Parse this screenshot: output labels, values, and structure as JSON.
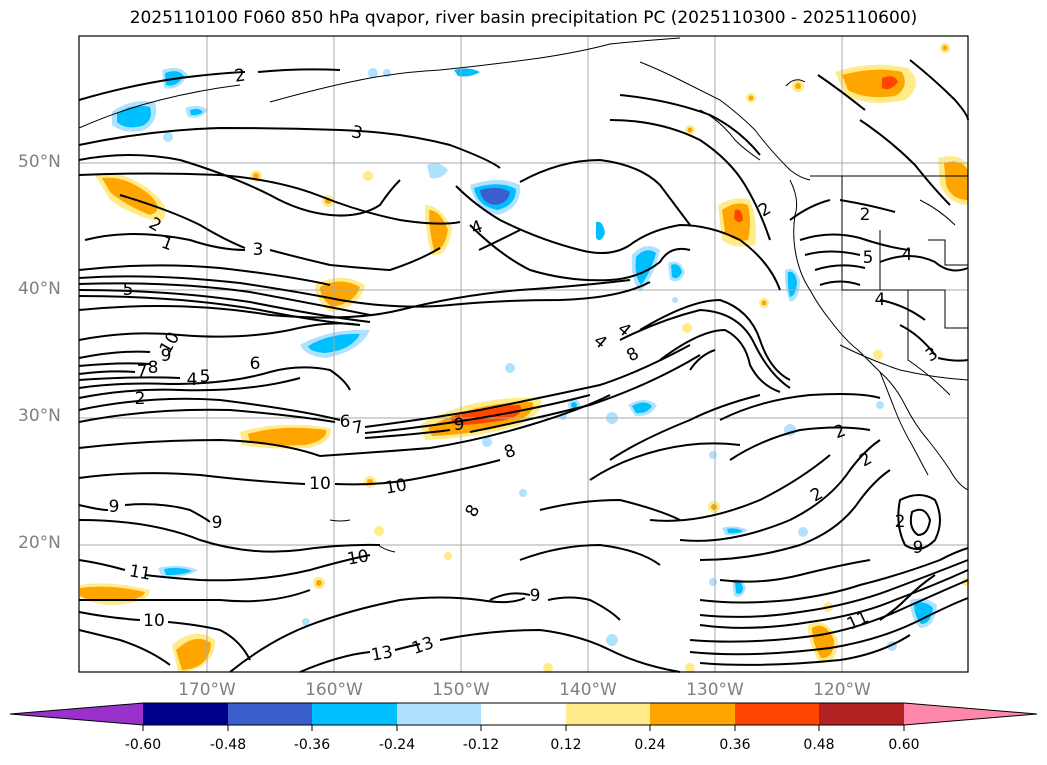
{
  "title": "2025110100 F060 850 hPa qvapor, river basin precipitation PC (2025110300 - 2025110600)",
  "lat_labels": [
    "50°N",
    "40°N",
    "30°N",
    "20°N"
  ],
  "lon_labels": [
    "170°W",
    "160°W",
    "150°W",
    "140°W",
    "130°W",
    "120°W"
  ],
  "colorbar": {
    "colors": [
      "#9932cc",
      "#00008b",
      "#3a5fcd",
      "#00bfff",
      "#b0e2ff",
      "#ffffff",
      "#ffeb8a",
      "#ffa500",
      "#ff4500",
      "#b22222",
      "#ff88aa"
    ],
    "tick_labels": [
      "-0.60",
      "-0.48",
      "-0.36",
      "-0.24",
      "-0.12",
      "0.12",
      "0.24",
      "0.36",
      "0.48",
      "0.60"
    ]
  },
  "contour_labels": [
    {
      "text": "2"
    },
    {
      "text": "3"
    },
    {
      "text": "2"
    },
    {
      "text": "1"
    },
    {
      "text": "3"
    },
    {
      "text": "4"
    },
    {
      "text": "5"
    },
    {
      "text": "10"
    },
    {
      "text": "9"
    },
    {
      "text": "8"
    },
    {
      "text": "7"
    },
    {
      "text": "6"
    },
    {
      "text": "5"
    },
    {
      "text": "4"
    },
    {
      "text": "2"
    },
    {
      "text": "6"
    },
    {
      "text": "7"
    },
    {
      "text": "9"
    },
    {
      "text": "8"
    },
    {
      "text": "4"
    },
    {
      "text": "4"
    },
    {
      "text": "8"
    },
    {
      "text": "2"
    },
    {
      "text": "2"
    },
    {
      "text": "5"
    },
    {
      "text": "4"
    },
    {
      "text": "4"
    },
    {
      "text": "3"
    },
    {
      "text": "2"
    },
    {
      "text": "2"
    },
    {
      "text": "2"
    },
    {
      "text": "9"
    },
    {
      "text": "9"
    },
    {
      "text": "10"
    },
    {
      "text": "10"
    },
    {
      "text": "8"
    },
    {
      "text": "10"
    },
    {
      "text": "11"
    },
    {
      "text": "10"
    },
    {
      "text": "9"
    },
    {
      "text": "13"
    },
    {
      "text": "13"
    },
    {
      "text": "11"
    },
    {
      "text": "2"
    },
    {
      "text": "9"
    }
  ]
}
